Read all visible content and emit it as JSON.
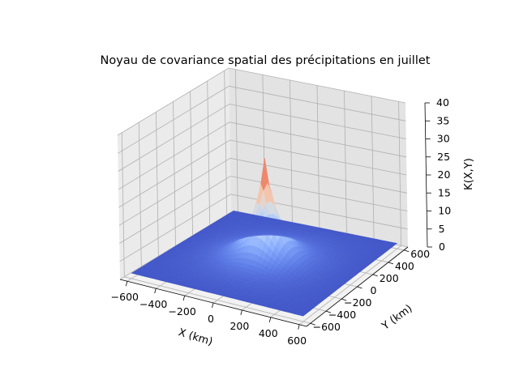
{
  "chart_data": {
    "type": "surface3d",
    "title": "Noyau de covariance spatial des précipitations en juillet",
    "xlabel": "X (km)",
    "ylabel": "Y (km)",
    "zlabel": "K(X,Y)",
    "x_ticks": [
      -600,
      -400,
      -200,
      0,
      200,
      400,
      600
    ],
    "y_ticks": [
      -600,
      -400,
      -200,
      0,
      200,
      400,
      600
    ],
    "z_ticks": [
      0,
      5,
      10,
      15,
      20,
      25,
      30,
      35,
      40
    ],
    "x_tick_labels": [
      "−600",
      "−400",
      "−200",
      "0",
      "200",
      "400",
      "600"
    ],
    "y_tick_labels": [
      "−600",
      "−400",
      "−200",
      "0",
      "200",
      "400",
      "600"
    ],
    "z_tick_labels": [
      "0",
      "5",
      "10",
      "15",
      "20",
      "25",
      "30",
      "35",
      "40"
    ],
    "xlim": [
      -650,
      650
    ],
    "ylim": [
      -650,
      650
    ],
    "zlim": [
      0,
      40
    ],
    "grid": true,
    "colormap": "coolwarm",
    "surface": {
      "domain": [
        -600,
        600
      ],
      "peak_value": 30,
      "peak_location": [
        0,
        0
      ],
      "edge_value": 1.5,
      "decay_length_km": 95,
      "baseline_amplitude": 2.5
    }
  }
}
